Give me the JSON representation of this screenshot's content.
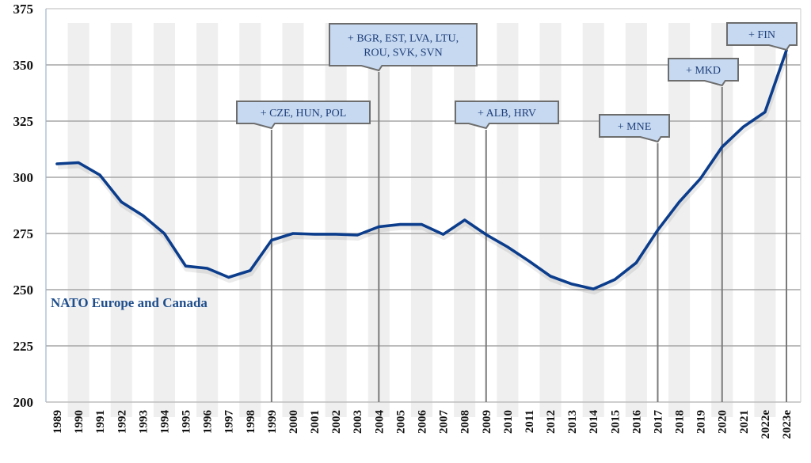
{
  "chart_data": {
    "type": "line",
    "title": "",
    "xlabel": "",
    "ylabel": "",
    "ylim": [
      200,
      375
    ],
    "yticks": [
      200,
      225,
      250,
      275,
      300,
      325,
      350,
      375
    ],
    "grid": "horizontal",
    "categories": [
      "1989",
      "1990",
      "1991",
      "1992",
      "1993",
      "1994",
      "1995",
      "1996",
      "1997",
      "1998",
      "1999",
      "2000",
      "2001",
      "2002",
      "2003",
      "2004",
      "2005",
      "2006",
      "2007",
      "2008",
      "2009",
      "2010",
      "2011",
      "2012",
      "2013",
      "2014",
      "2015",
      "2016",
      "2017",
      "2018",
      "2019",
      "2020",
      "2021",
      "2022e",
      "2023e"
    ],
    "series": [
      {
        "name": "NATO Europe and Canada",
        "color": "#0b3d8c",
        "values": [
          306,
          306.5,
          301,
          289,
          283,
          275,
          260.5,
          259.5,
          255.5,
          258.5,
          272,
          275,
          274.7,
          274.7,
          274.3,
          278,
          279,
          279,
          274.6,
          281,
          274.5,
          269,
          262.7,
          256,
          252.5,
          250.3,
          254.5,
          262,
          276.5,
          289,
          299.5,
          313.5,
          322.5,
          329,
          356.5
        ]
      }
    ],
    "series_label": "NATO Europe and Canada",
    "annotations": [
      {
        "year": "1999",
        "lines": [
          "+ CZE, HUN, POL"
        ]
      },
      {
        "year": "2004",
        "lines": [
          "+ BGR, EST, LVA, LTU,",
          "ROU, SVK, SVN"
        ]
      },
      {
        "year": "2009",
        "lines": [
          "+ ALB, HRV"
        ]
      },
      {
        "year": "2017",
        "lines": [
          "+ MNE"
        ]
      },
      {
        "year": "2020",
        "lines": [
          "+ MKD"
        ]
      },
      {
        "year": "2023e",
        "lines": [
          "+ FIN"
        ]
      }
    ],
    "colors": {
      "line": "#0b3d8c",
      "band": "#efefef",
      "grid": "#a6a6a6",
      "annotation_fill": "#c6d9f1",
      "annotation_border": "#6d6d6d",
      "annotation_text": "#1f3f7a"
    }
  }
}
